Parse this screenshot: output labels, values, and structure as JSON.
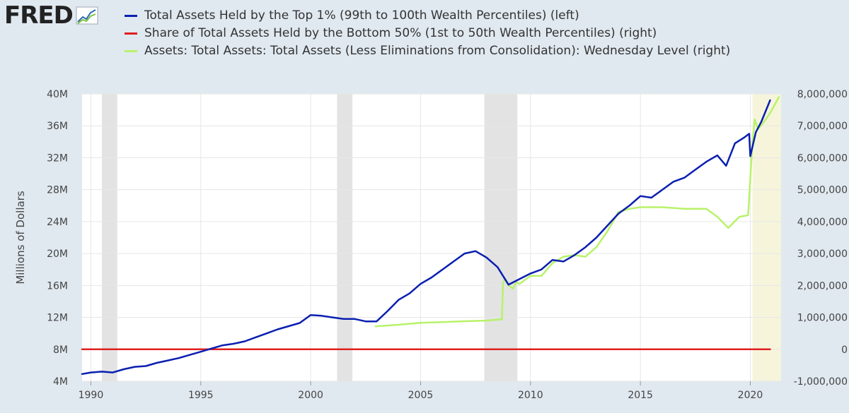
{
  "logo": {
    "text": "FRED",
    "icon": "fred-graph-icon"
  },
  "chart_data": {
    "type": "line",
    "ylabel": "Millions of Dollars",
    "legend_placement": "top",
    "grid": true,
    "xlim": [
      1989.6,
      2021.4
    ],
    "ylim_left": [
      4,
      40
    ],
    "ylim_right": [
      -1000000,
      8000000
    ],
    "x_ticks": [
      "1990",
      "1995",
      "2000",
      "2005",
      "2010",
      "2015",
      "2020"
    ],
    "y_ticks_left": [
      "4M",
      "8M",
      "12M",
      "16M",
      "20M",
      "24M",
      "28M",
      "32M",
      "36M",
      "40M"
    ],
    "y_ticks_right": [
      "-1,000,000",
      "0",
      "1,000,000",
      "2,000,000",
      "3,000,000",
      "4,000,000",
      "5,000,000",
      "6,000,000",
      "7,000,000",
      "8,000,000"
    ],
    "recessions": [
      [
        1990.5,
        1991.2
      ],
      [
        2001.2,
        2001.9
      ],
      [
        2007.9,
        2009.4
      ],
      [
        2020.1,
        2021.4
      ]
    ],
    "recession_colors": [
      "#e3e3e3",
      "#e3e3e3",
      "#e3e3e3",
      "#f6f5dc"
    ],
    "series": [
      {
        "name": "Total Assets Held by the Top 1% (99th to 100th Wealth Percentiles) (left)",
        "color": "#0a1fb0",
        "axis": "left",
        "x": [
          1989.6,
          1990.0,
          1990.5,
          1991.0,
          1991.5,
          1992.0,
          1992.5,
          1993.0,
          1993.5,
          1994.0,
          1994.5,
          1995.0,
          1995.5,
          1996.0,
          1996.5,
          1997.0,
          1997.5,
          1998.0,
          1998.5,
          1999.0,
          1999.5,
          2000.0,
          2000.5,
          2001.0,
          2001.5,
          2002.0,
          2002.5,
          2003.0,
          2003.5,
          2004.0,
          2004.5,
          2005.0,
          2005.5,
          2006.0,
          2006.5,
          2007.0,
          2007.5,
          2008.0,
          2008.5,
          2009.0,
          2009.5,
          2010.0,
          2010.5,
          2011.0,
          2011.5,
          2012.0,
          2012.5,
          2013.0,
          2013.5,
          2014.0,
          2014.5,
          2015.0,
          2015.5,
          2016.0,
          2016.5,
          2017.0,
          2017.5,
          2018.0,
          2018.5,
          2018.9,
          2019.3,
          2019.7,
          2019.95,
          2020.0,
          2020.25,
          2020.5,
          2020.9
        ],
        "values": [
          4.9,
          5.1,
          5.2,
          5.1,
          5.5,
          5.8,
          5.9,
          6.3,
          6.6,
          6.9,
          7.3,
          7.7,
          8.1,
          8.5,
          8.7,
          9.0,
          9.5,
          10.0,
          10.5,
          10.9,
          11.3,
          12.3,
          12.2,
          12.0,
          11.8,
          11.8,
          11.5,
          11.5,
          12.8,
          14.2,
          15.0,
          16.2,
          17.0,
          18.0,
          19.0,
          20.0,
          20.3,
          19.5,
          18.3,
          16.1,
          16.8,
          17.5,
          18.0,
          19.2,
          19.0,
          19.8,
          20.8,
          22.0,
          23.5,
          25.0,
          26.0,
          27.2,
          27.0,
          28.0,
          29.0,
          29.5,
          30.5,
          31.5,
          32.3,
          31.0,
          33.8,
          34.5,
          35.0,
          32.2,
          35.2,
          36.5,
          39.2
        ]
      },
      {
        "name": "Share of Total Assets Held by the Bottom 50% (1st to 50th Wealth Percentiles) (right)",
        "color": "#e02020",
        "axis": "right",
        "x": [
          1989.6,
          2020.9
        ],
        "values": [
          0,
          0
        ]
      },
      {
        "name": "Assets: Total Assets: Total Assets (Less Eliminations from Consolidation): Wednesday Level (right)",
        "color": "#b8f26a",
        "axis": "right",
        "x": [
          2002.95,
          2004.0,
          2005.0,
          2006.0,
          2007.0,
          2008.0,
          2008.7,
          2008.75,
          2008.85,
          2009.0,
          2009.2,
          2009.35,
          2009.5,
          2010.0,
          2010.5,
          2011.0,
          2011.5,
          2012.0,
          2012.5,
          2013.0,
          2013.5,
          2014.0,
          2014.5,
          2015.0,
          2016.0,
          2017.0,
          2018.0,
          2018.5,
          2019.0,
          2019.5,
          2019.9,
          2020.1,
          2020.2,
          2020.35,
          2020.6,
          2020.9,
          2021.3
        ],
        "values": [
          720000,
          770000,
          830000,
          850000,
          880000,
          900000,
          940000,
          2100000,
          2200000,
          2000000,
          1900000,
          2100000,
          2050000,
          2300000,
          2300000,
          2700000,
          2900000,
          2950000,
          2900000,
          3200000,
          3700000,
          4300000,
          4400000,
          4450000,
          4450000,
          4400000,
          4400000,
          4150000,
          3800000,
          4150000,
          4200000,
          6500000,
          7200000,
          6900000,
          7100000,
          7400000,
          7900000
        ]
      }
    ]
  }
}
